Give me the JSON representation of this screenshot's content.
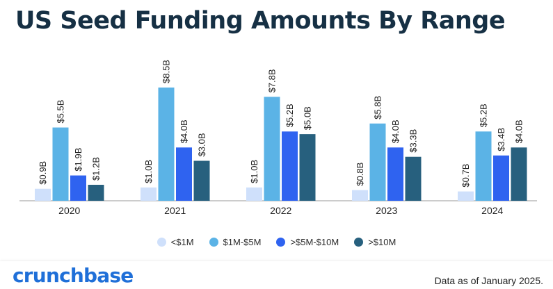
{
  "title": "US Seed Funding Amounts By Range",
  "chart_data": {
    "type": "bar",
    "categories": [
      "2020",
      "2021",
      "2022",
      "2023",
      "2024"
    ],
    "series": [
      {
        "name": "<$1M",
        "color": "#cfe0fb",
        "values": [
          0.9,
          1.0,
          1.0,
          0.8,
          0.7
        ],
        "labels": [
          "$0.9B",
          "$1.0B",
          "$1.0B",
          "$0.8B",
          "$0.7B"
        ]
      },
      {
        "name": "$1M-$5M",
        "color": "#5bb3e6",
        "values": [
          5.5,
          8.5,
          7.8,
          5.8,
          5.2
        ],
        "labels": [
          "$5.5B",
          "$8.5B",
          "$7.8B",
          "$5.8B",
          "$5.2B"
        ]
      },
      {
        "name": ">$5M-$10M",
        "color": "#2f63f0",
        "values": [
          1.9,
          4.0,
          5.2,
          4.0,
          3.4
        ],
        "labels": [
          "$1.9B",
          "$4.0B",
          "$5.2B",
          "$4.0B",
          "$3.4B"
        ]
      },
      {
        "name": ">$10M",
        "color": "#27607e",
        "values": [
          1.2,
          3.0,
          5.0,
          3.3,
          4.0
        ],
        "labels": [
          "$1.2B",
          "$3.0B",
          "$5.0B",
          "$3.3B",
          "$4.0B"
        ]
      }
    ],
    "ylim": [
      0,
      8.5
    ],
    "xlabel": "",
    "ylabel": "",
    "legend_position": "bottom"
  },
  "footer": {
    "logo": "crunchbase",
    "note": "Data as of January 2025."
  }
}
